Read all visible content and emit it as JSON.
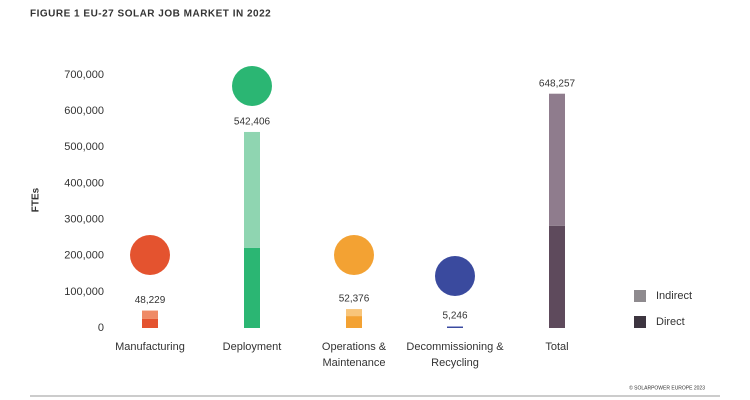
{
  "chart_data": {
    "type": "stacked_bar",
    "title": "FIGURE 1 EU-27 SOLAR JOB MARKET IN 2022",
    "y_label": "FTEs",
    "footer": "© SOLARPOWER EUROPE 2023",
    "categories": [
      "Manufacturing",
      "Deployment",
      "Operations & Maintenance",
      "Decommissioning & Recycling",
      "Total"
    ],
    "series": [
      {
        "name": "Direct",
        "color": "#3d3540",
        "values": [
          25000,
          222000,
          33000,
          3000,
          283000
        ],
        "bar_colors": [
          "#e4532f",
          "#2bb673",
          "#f3a233",
          "#3a4a9e",
          "#5e4a5c"
        ]
      },
      {
        "name": "Indirect",
        "color": "#8e8a8e",
        "values": [
          23229,
          320406,
          19376,
          2246,
          365257
        ],
        "bar_colors": [
          "#ef8a66",
          "#8fd5b1",
          "#f8c57a",
          "#8b95cc",
          "#8f7c8d"
        ]
      }
    ],
    "totals": [
      48229,
      542406,
      52376,
      5246,
      648257
    ],
    "total_labels": [
      "48,229",
      "542,406",
      "52,376",
      "5,246",
      "648,257"
    ],
    "ylim": [
      0,
      700000
    ],
    "yticks": [
      0,
      {
        "value": 100000,
        "label": "100,000"
      },
      {
        "value": 200000,
        "label": "200,000"
      },
      {
        "value": 300000,
        "label": "300,000"
      },
      {
        "value": 400000,
        "label": "400,000"
      },
      {
        "value": 500000,
        "label": "500,000"
      },
      {
        "value": 600000,
        "label": "600,000"
      },
      {
        "value": 700000,
        "label": "700,000"
      }
    ],
    "legend_position": "right"
  }
}
